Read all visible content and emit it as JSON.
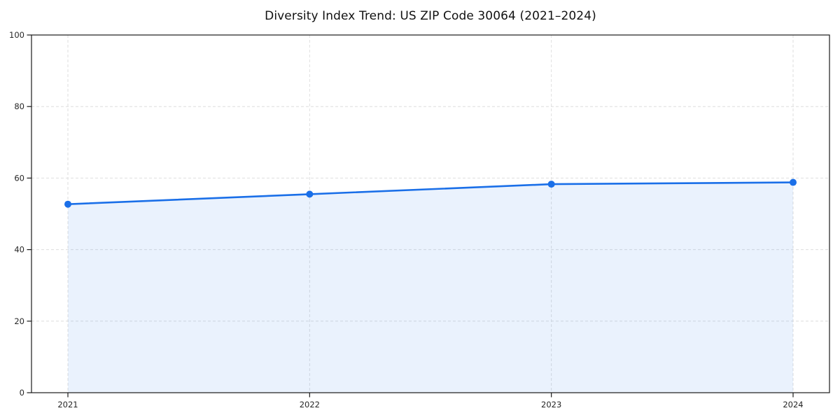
{
  "chart_data": {
    "type": "area",
    "title": "Diversity Index Trend: US ZIP Code 30064 (2021–2024)",
    "categories": [
      "2021",
      "2022",
      "2023",
      "2024"
    ],
    "values": [
      52.7,
      55.5,
      58.3,
      58.8
    ],
    "ylim": [
      0,
      100
    ],
    "yticks": [
      0,
      20,
      40,
      60,
      80,
      100
    ],
    "xlabel": "",
    "ylabel": "",
    "grid": true,
    "grid_style": "dashed",
    "legend_position": "none",
    "colors": {
      "line": "#1a6fe8",
      "marker": "#1a6fe8",
      "fill": "rgba(26,111,232,0.09)",
      "gridline": "#dedede",
      "spine": "#1a1a1a",
      "tick_label": "#262626",
      "background": "#ffffff"
    }
  }
}
